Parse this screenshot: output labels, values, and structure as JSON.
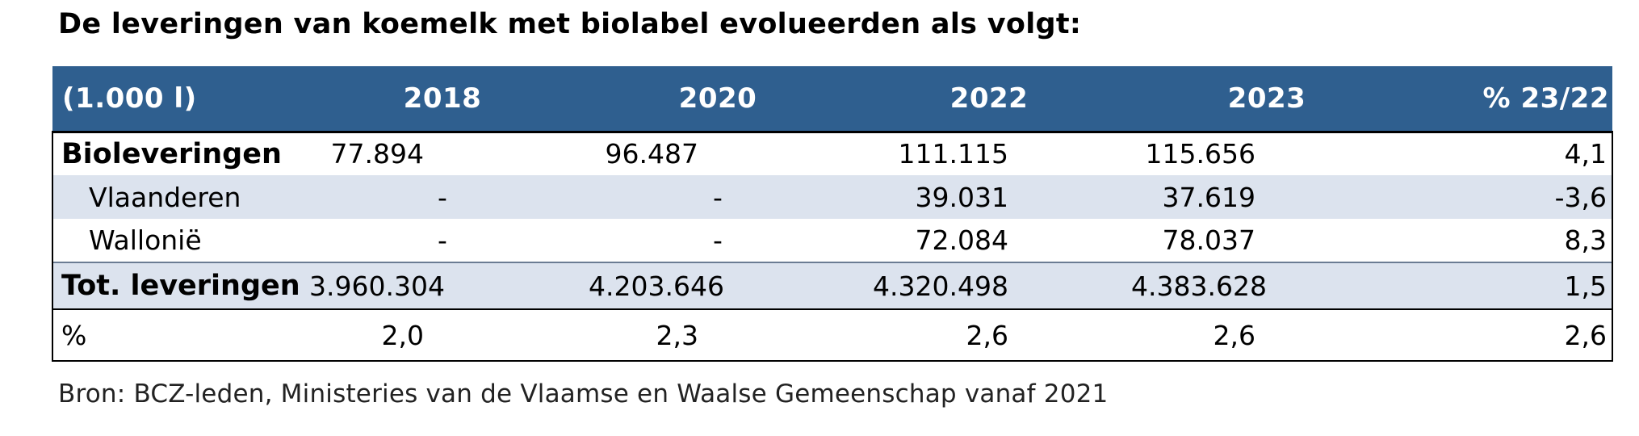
{
  "title": "De leveringen van koemelk met biolabel evolueerden als volgt:",
  "table": {
    "headers": [
      "(1.000 l)",
      "2018",
      "2020",
      "2022",
      "2023",
      "% 23/22"
    ],
    "rows": [
      {
        "label": "Bioleveringen",
        "values": [
          "77.894",
          "96.487",
          "111.115",
          "115.656",
          "4,1"
        ]
      },
      {
        "label": "Vlaanderen",
        "values": [
          "-",
          "-",
          "39.031",
          "37.619",
          "-3,6"
        ]
      },
      {
        "label": "Wallonië",
        "values": [
          "-",
          "-",
          "72.084",
          "78.037",
          "8,3"
        ]
      },
      {
        "label": "Tot. leveringen",
        "values": [
          "3.960.304",
          "4.203.646",
          "4.320.498",
          "4.383.628",
          "1,5"
        ]
      },
      {
        "label": "%",
        "values": [
          "2,0",
          "2,3",
          "2,6",
          "2,6",
          "2,6"
        ]
      }
    ]
  },
  "source": "Bron: BCZ-leden, Ministeries van de Vlaamse en Waalse Gemeenschap vanaf 2021",
  "colors": {
    "header_bg": "#2f5f8f",
    "row_shade": "#dce3ee"
  }
}
